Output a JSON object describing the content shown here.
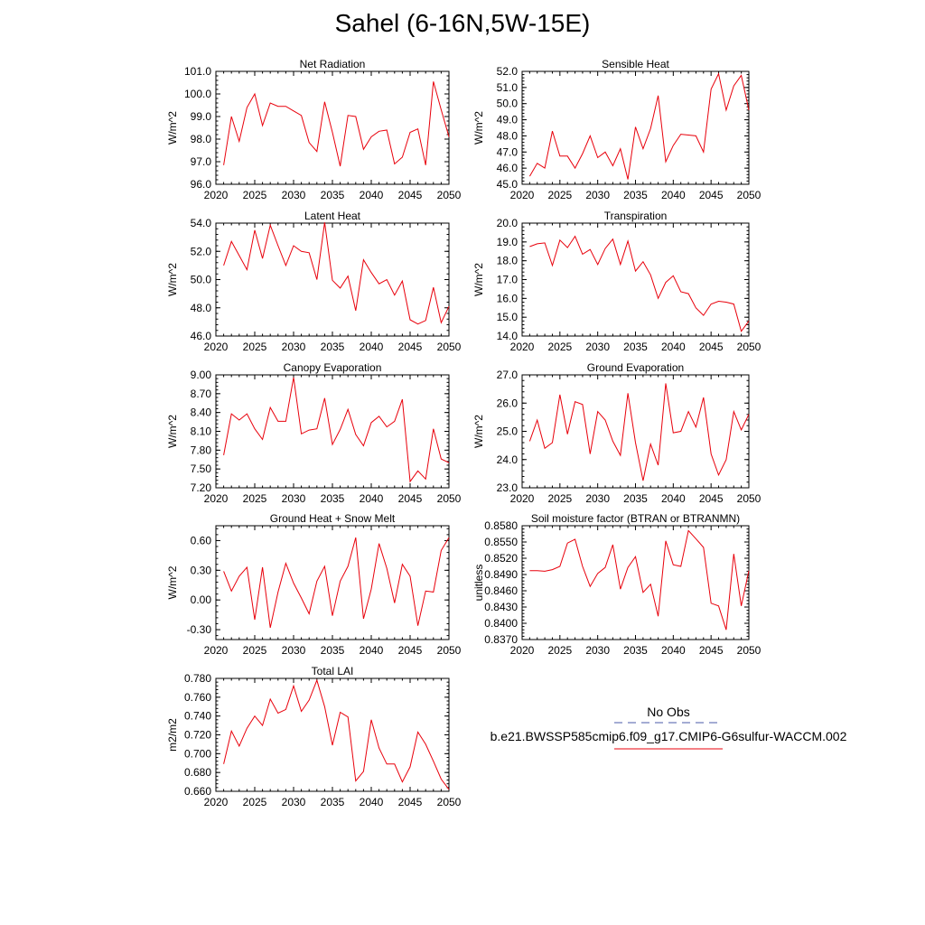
{
  "title": "Sahel (6-16N,5W-15E)",
  "legend": {
    "obs_label": "No Obs",
    "model_label": "b.e21.BWSSP585cmip6.f09_g17.CMIP6-G6sulfur-WACCM.002",
    "obs_color": "#4a5aa8",
    "model_color": "#e8000b"
  },
  "chart_data": [
    {
      "type": "line",
      "title": "Net Radiation",
      "ylabel": "W/m^2",
      "xlim": [
        2020,
        2050
      ],
      "ylim": [
        96.0,
        101.0
      ],
      "xticks": [
        "2020",
        "2025",
        "2030",
        "2035",
        "2040",
        "2045",
        "2050"
      ],
      "yticks": [
        "96.0",
        "97.0",
        "98.0",
        "99.0",
        "100.0",
        "101.0"
      ],
      "x": [
        2021,
        2022,
        2023,
        2024,
        2025,
        2026,
        2027,
        2028,
        2029,
        2030,
        2031,
        2032,
        2033,
        2034,
        2035,
        2036,
        2037,
        2038,
        2039,
        2040,
        2041,
        2042,
        2043,
        2044,
        2045,
        2046,
        2047,
        2048,
        2049,
        2050
      ],
      "series": [
        {
          "color": "#e8000b",
          "values": [
            96.85,
            99.0,
            97.9,
            99.4,
            100.0,
            98.6,
            99.6,
            99.45,
            99.45,
            99.25,
            99.05,
            97.85,
            97.45,
            99.65,
            98.3,
            96.8,
            99.05,
            99.0,
            97.55,
            98.1,
            98.35,
            98.4,
            96.9,
            97.2,
            98.3,
            98.45,
            96.85,
            100.55,
            99.3,
            98.1
          ]
        }
      ]
    },
    {
      "type": "line",
      "title": "Sensible Heat",
      "ylabel": "W/m^2",
      "xlim": [
        2020,
        2050
      ],
      "ylim": [
        45.0,
        52.0
      ],
      "xticks": [
        "2020",
        "2025",
        "2030",
        "2035",
        "2040",
        "2045",
        "2050"
      ],
      "yticks": [
        "45.0",
        "46.0",
        "47.0",
        "48.0",
        "49.0",
        "50.0",
        "51.0",
        "52.0"
      ],
      "x": [
        2021,
        2022,
        2023,
        2024,
        2025,
        2026,
        2027,
        2028,
        2029,
        2030,
        2031,
        2032,
        2033,
        2034,
        2035,
        2036,
        2037,
        2038,
        2039,
        2040,
        2041,
        2042,
        2043,
        2044,
        2045,
        2046,
        2047,
        2048,
        2049,
        2050
      ],
      "series": [
        {
          "color": "#e8000b",
          "values": [
            45.5,
            46.3,
            46.0,
            48.3,
            46.75,
            46.75,
            46.0,
            46.9,
            48.0,
            46.65,
            47.0,
            46.15,
            47.2,
            45.3,
            48.55,
            47.2,
            48.45,
            50.5,
            46.4,
            47.4,
            48.1,
            48.05,
            48.0,
            47.0,
            50.9,
            51.85,
            49.6,
            51.1,
            51.75,
            49.6
          ]
        }
      ]
    },
    {
      "type": "line",
      "title": "Latent Heat",
      "ylabel": "W/m^2",
      "xlim": [
        2020,
        2050
      ],
      "ylim": [
        46.0,
        54.0
      ],
      "xticks": [
        "2020",
        "2025",
        "2030",
        "2035",
        "2040",
        "2045",
        "2050"
      ],
      "yticks": [
        "46.0",
        "48.0",
        "50.0",
        "52.0",
        "54.0"
      ],
      "x": [
        2021,
        2022,
        2023,
        2024,
        2025,
        2026,
        2027,
        2028,
        2029,
        2030,
        2031,
        2032,
        2033,
        2034,
        2035,
        2036,
        2037,
        2038,
        2039,
        2040,
        2041,
        2042,
        2043,
        2044,
        2045,
        2046,
        2047,
        2048,
        2049,
        2050
      ],
      "series": [
        {
          "color": "#e8000b",
          "values": [
            51.0,
            52.7,
            51.7,
            50.7,
            53.5,
            51.5,
            53.85,
            52.4,
            51.0,
            52.4,
            52.0,
            51.9,
            50.0,
            54.05,
            49.95,
            49.4,
            50.25,
            47.8,
            51.4,
            50.5,
            49.7,
            50.0,
            48.9,
            49.9,
            47.15,
            46.85,
            47.1,
            49.45,
            46.95,
            48.1
          ]
        }
      ]
    },
    {
      "type": "line",
      "title": "Transpiration",
      "ylabel": "W/m^2",
      "xlim": [
        2020,
        2050
      ],
      "ylim": [
        14.0,
        20.0
      ],
      "xticks": [
        "2020",
        "2025",
        "2030",
        "2035",
        "2040",
        "2045",
        "2050"
      ],
      "yticks": [
        "14.0",
        "15.0",
        "16.0",
        "17.0",
        "18.0",
        "19.0",
        "20.0"
      ],
      "x": [
        2021,
        2022,
        2023,
        2024,
        2025,
        2026,
        2027,
        2028,
        2029,
        2030,
        2031,
        2032,
        2033,
        2034,
        2035,
        2036,
        2037,
        2038,
        2039,
        2040,
        2041,
        2042,
        2043,
        2044,
        2045,
        2046,
        2047,
        2048,
        2049,
        2050
      ],
      "series": [
        {
          "color": "#e8000b",
          "values": [
            18.75,
            18.9,
            18.95,
            17.75,
            19.1,
            18.7,
            19.3,
            18.35,
            18.6,
            17.8,
            18.65,
            19.15,
            17.8,
            19.05,
            17.45,
            17.95,
            17.25,
            16.0,
            16.85,
            17.2,
            16.35,
            16.25,
            15.5,
            15.1,
            15.7,
            15.85,
            15.8,
            15.7,
            14.25,
            14.8
          ]
        }
      ]
    },
    {
      "type": "line",
      "title": "Canopy Evaporation",
      "ylabel": "W/m^2",
      "xlim": [
        2020,
        2050
      ],
      "ylim": [
        7.2,
        9.0
      ],
      "xticks": [
        "2020",
        "2025",
        "2030",
        "2035",
        "2040",
        "2045",
        "2050"
      ],
      "yticks": [
        "7.20",
        "7.50",
        "7.80",
        "8.10",
        "8.40",
        "8.70",
        "9.00"
      ],
      "x": [
        2021,
        2022,
        2023,
        2024,
        2025,
        2026,
        2027,
        2028,
        2029,
        2030,
        2031,
        2032,
        2033,
        2034,
        2035,
        2036,
        2037,
        2038,
        2039,
        2040,
        2041,
        2042,
        2043,
        2044,
        2045,
        2046,
        2047,
        2048,
        2049,
        2050
      ],
      "series": [
        {
          "color": "#e8000b",
          "values": [
            7.72,
            8.38,
            8.28,
            8.38,
            8.14,
            7.97,
            8.48,
            8.26,
            8.26,
            8.96,
            8.06,
            8.12,
            8.14,
            8.63,
            7.89,
            8.13,
            8.45,
            8.05,
            7.87,
            8.24,
            8.34,
            8.17,
            8.26,
            8.61,
            7.3,
            7.47,
            7.34,
            8.14,
            7.66,
            7.6
          ]
        }
      ]
    },
    {
      "type": "line",
      "title": "Ground Evaporation",
      "ylabel": "W/m^2",
      "xlim": [
        2020,
        2050
      ],
      "ylim": [
        23.0,
        27.0
      ],
      "xticks": [
        "2020",
        "2025",
        "2030",
        "2035",
        "2040",
        "2045",
        "2050"
      ],
      "yticks": [
        "23.0",
        "24.0",
        "25.0",
        "26.0",
        "27.0"
      ],
      "x": [
        2021,
        2022,
        2023,
        2024,
        2025,
        2026,
        2027,
        2028,
        2029,
        2030,
        2031,
        2032,
        2033,
        2034,
        2035,
        2036,
        2037,
        2038,
        2039,
        2040,
        2041,
        2042,
        2043,
        2044,
        2045,
        2046,
        2047,
        2048,
        2049,
        2050
      ],
      "series": [
        {
          "color": "#e8000b",
          "values": [
            24.65,
            25.4,
            24.4,
            24.6,
            26.3,
            24.9,
            26.05,
            25.95,
            24.2,
            25.7,
            25.4,
            24.65,
            24.15,
            26.35,
            24.6,
            23.25,
            24.55,
            23.8,
            26.7,
            24.95,
            25.0,
            25.7,
            25.15,
            26.2,
            24.2,
            23.45,
            24.0,
            25.7,
            25.05,
            25.6
          ]
        }
      ]
    },
    {
      "type": "line",
      "title": "Ground Heat + Snow Melt",
      "ylabel": "W/m^2",
      "xlim": [
        2020,
        2050
      ],
      "ylim": [
        -0.4,
        0.75
      ],
      "xticks": [
        "2020",
        "2025",
        "2030",
        "2035",
        "2040",
        "2045",
        "2050"
      ],
      "yticks": [
        "-0.30",
        "0.00",
        "0.30",
        "0.60"
      ],
      "ytick_values": [
        -0.3,
        0.0,
        0.3,
        0.6
      ],
      "x": [
        2021,
        2022,
        2023,
        2024,
        2025,
        2026,
        2027,
        2028,
        2029,
        2030,
        2031,
        2032,
        2033,
        2034,
        2035,
        2036,
        2037,
        2038,
        2039,
        2040,
        2041,
        2042,
        2043,
        2044,
        2045,
        2046,
        2047,
        2048,
        2049,
        2050
      ],
      "series": [
        {
          "color": "#e8000b",
          "values": [
            0.29,
            0.09,
            0.24,
            0.33,
            -0.2,
            0.33,
            -0.28,
            0.08,
            0.37,
            0.17,
            0.02,
            -0.14,
            0.19,
            0.34,
            -0.16,
            0.19,
            0.34,
            0.63,
            -0.19,
            0.11,
            0.57,
            0.32,
            -0.03,
            0.36,
            0.24,
            -0.26,
            0.09,
            0.08,
            0.5,
            0.63
          ]
        }
      ]
    },
    {
      "type": "line",
      "title": "Soil moisture factor (BTRAN or BTRANMN)",
      "ylabel": "unitless",
      "xlim": [
        2020,
        2050
      ],
      "ylim": [
        0.837,
        0.858
      ],
      "xticks": [
        "2020",
        "2025",
        "2030",
        "2035",
        "2040",
        "2045",
        "2050"
      ],
      "yticks": [
        "0.8370",
        "0.8400",
        "0.8430",
        "0.8460",
        "0.8490",
        "0.8520",
        "0.8550",
        "0.8580"
      ],
      "x": [
        2021,
        2022,
        2023,
        2024,
        2025,
        2026,
        2027,
        2028,
        2029,
        2030,
        2031,
        2032,
        2033,
        2034,
        2035,
        2036,
        2037,
        2038,
        2039,
        2040,
        2041,
        2042,
        2043,
        2044,
        2045,
        2046,
        2047,
        2048,
        2049,
        2050
      ],
      "series": [
        {
          "color": "#e8000b",
          "values": [
            0.8497,
            0.8497,
            0.8496,
            0.8499,
            0.8505,
            0.8548,
            0.8555,
            0.8505,
            0.8468,
            0.8492,
            0.8503,
            0.8545,
            0.8463,
            0.8503,
            0.8523,
            0.8457,
            0.8472,
            0.8413,
            0.8552,
            0.8508,
            0.8505,
            0.8571,
            0.8556,
            0.854,
            0.8437,
            0.8432,
            0.8388,
            0.8528,
            0.8432,
            0.8497
          ]
        }
      ]
    },
    {
      "type": "line",
      "title": "Total LAI",
      "ylabel": "m2/m2",
      "xlim": [
        2020,
        2050
      ],
      "ylim": [
        0.66,
        0.78
      ],
      "xticks": [
        "2020",
        "2025",
        "2030",
        "2035",
        "2040",
        "2045",
        "2050"
      ],
      "yticks": [
        "0.660",
        "0.680",
        "0.700",
        "0.720",
        "0.740",
        "0.760",
        "0.780"
      ],
      "x": [
        2021,
        2022,
        2023,
        2024,
        2025,
        2026,
        2027,
        2028,
        2029,
        2030,
        2031,
        2032,
        2033,
        2034,
        2035,
        2036,
        2037,
        2038,
        2039,
        2040,
        2041,
        2042,
        2043,
        2044,
        2045,
        2046,
        2047,
        2048,
        2049,
        2050
      ],
      "series": [
        {
          "color": "#e8000b",
          "values": [
            0.689,
            0.724,
            0.708,
            0.727,
            0.74,
            0.73,
            0.758,
            0.743,
            0.747,
            0.772,
            0.745,
            0.757,
            0.778,
            0.75,
            0.709,
            0.744,
            0.739,
            0.671,
            0.681,
            0.736,
            0.706,
            0.689,
            0.689,
            0.67,
            0.686,
            0.723,
            0.71,
            0.692,
            0.673,
            0.662
          ]
        }
      ]
    }
  ]
}
